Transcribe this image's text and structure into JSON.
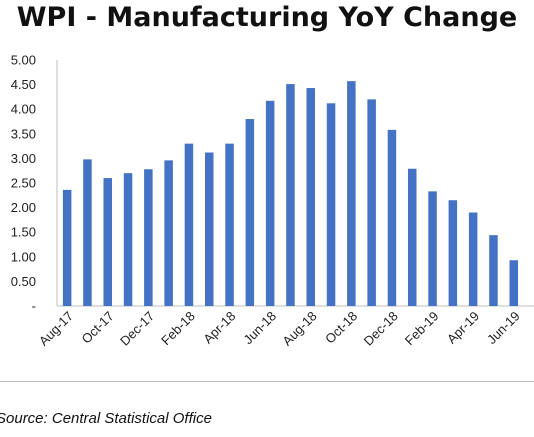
{
  "chart_data": {
    "type": "bar",
    "title": "WPI - Manufacturing YoY Change",
    "xlabel": "",
    "ylabel": "",
    "ylim": [
      0,
      5
    ],
    "y_ticks": [
      "-",
      "0.50",
      "1.00",
      "1.50",
      "2.00",
      "2.50",
      "3.00",
      "3.50",
      "4.00",
      "4.50",
      "5.00"
    ],
    "categories": [
      "Aug-17",
      "Sep-17",
      "Oct-17",
      "Nov-17",
      "Dec-17",
      "Jan-18",
      "Feb-18",
      "Mar-18",
      "Apr-18",
      "May-18",
      "Jun-18",
      "Jul-18",
      "Aug-18",
      "Sep-18",
      "Oct-18",
      "Nov-18",
      "Dec-18",
      "Jan-19",
      "Feb-19",
      "Mar-19",
      "Apr-19",
      "May-19",
      "Jun-19"
    ],
    "x_tick_labels": [
      "Aug-17",
      "Oct-17",
      "Dec-17",
      "Feb-18",
      "Apr-18",
      "Jun-18",
      "Aug-18",
      "Oct-18",
      "Dec-18",
      "Feb-19",
      "Apr-19",
      "Jun-19"
    ],
    "values": [
      2.36,
      2.98,
      2.6,
      2.7,
      2.78,
      2.96,
      3.3,
      3.12,
      3.3,
      3.8,
      4.17,
      4.51,
      4.43,
      4.12,
      4.57,
      4.2,
      3.58,
      2.79,
      2.33,
      2.15,
      1.9,
      1.44,
      0.93
    ],
    "bar_color": "#4472C4",
    "grid": false
  },
  "source": "Source: Central Statistical Office"
}
